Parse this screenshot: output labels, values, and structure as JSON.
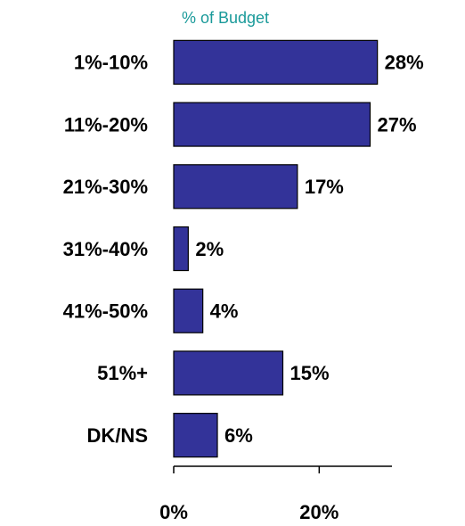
{
  "chart_data": {
    "type": "bar",
    "orientation": "horizontal",
    "title": "% of Budget",
    "categories": [
      "1%-10%",
      "11%-20%",
      "21%-30%",
      "31%-40%",
      "41%-50%",
      "51%+",
      "DK/NS"
    ],
    "values": [
      28,
      27,
      17,
      2,
      4,
      15,
      6
    ],
    "value_labels": [
      "28%",
      "27%",
      "17%",
      "2%",
      "4%",
      "15%",
      "6%"
    ],
    "color": "#333399",
    "xlim": [
      0,
      30
    ],
    "xticks": [
      {
        "value": 0,
        "label": "0%"
      },
      {
        "value": 20,
        "label": "20%"
      }
    ]
  }
}
